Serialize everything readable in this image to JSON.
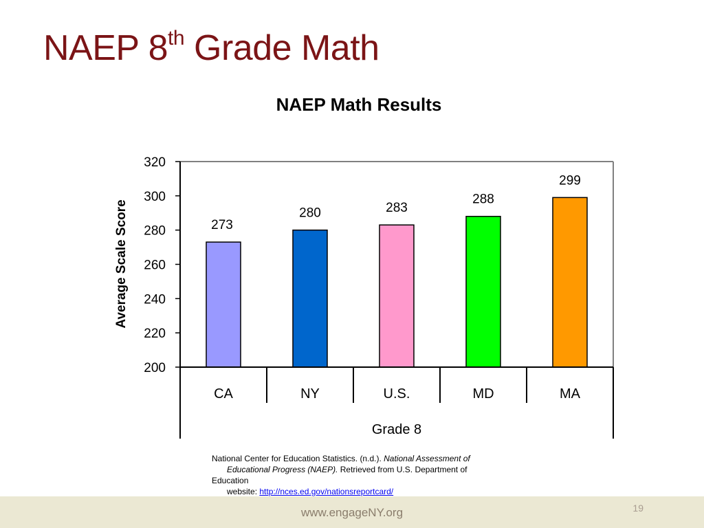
{
  "slide": {
    "title_main": "NAEP 8",
    "title_sup": "th",
    "title_rest": " Grade Math"
  },
  "chart_data": {
    "type": "bar",
    "title": "NAEP Math Results",
    "xlabel": "Grade 8",
    "ylabel": "Average Scale Score",
    "categories": [
      "CA",
      "NY",
      "U.S.",
      "MD",
      "MA"
    ],
    "values": [
      273,
      280,
      283,
      288,
      299
    ],
    "data_labels": [
      "273",
      "280",
      "283",
      "288",
      "299"
    ],
    "colors": [
      "#9999ff",
      "#0066cc",
      "#ff99cc",
      "#00ff00",
      "#ff9900"
    ],
    "ylim": [
      200,
      320
    ],
    "yticks": [
      200,
      220,
      240,
      260,
      280,
      300,
      320
    ],
    "grid": false,
    "legend": "none"
  },
  "citation": {
    "line1_plain": "National Center for Education Statistics. (n.d.). ",
    "line1_italic": "National Assessment of",
    "line2_italic": "Educational Progress (NAEP).",
    "line2_plain": " Retrieved from U.S. Department of",
    "line3": "Education",
    "line4_plain": "website: ",
    "link": "http://nces.ed.gov/nationsreportcard/"
  },
  "footer": {
    "url": "www.engageNY.org",
    "page_number": "19"
  }
}
